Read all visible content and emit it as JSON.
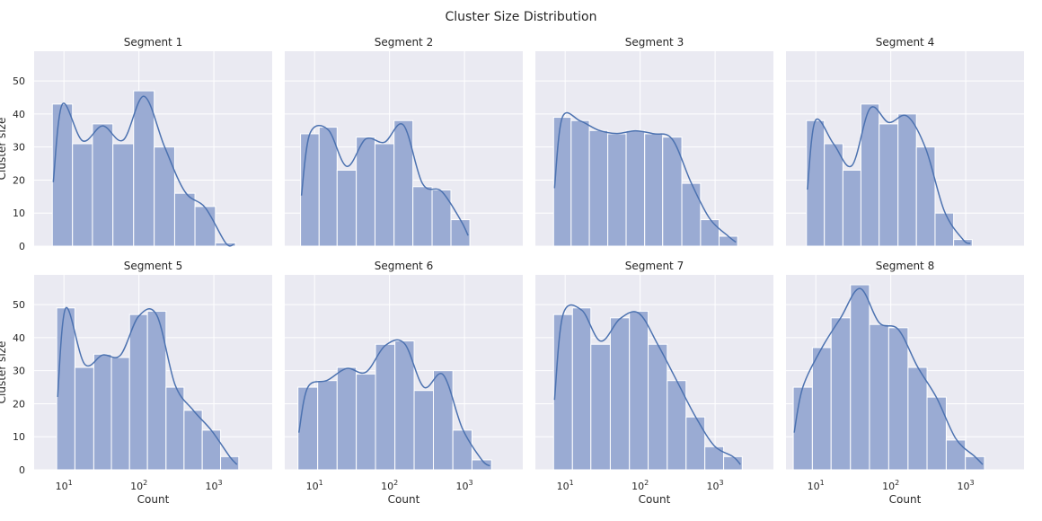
{
  "suptitle": "Cluster Size Distribution",
  "chart_data": {
    "type": "bar",
    "subtype": "histogram-with-kde",
    "x_scale": "log",
    "xlim": [
      4,
      6000
    ],
    "ylim": [
      0,
      59
    ],
    "yticks": [
      0,
      10,
      20,
      30,
      40,
      50
    ],
    "xticks": [
      10,
      100,
      1000
    ],
    "xtick_labels": [
      [
        "10",
        "1"
      ],
      [
        "10",
        "2"
      ],
      [
        "10",
        "3"
      ]
    ],
    "grid": true,
    "ylabel": "Cluster size",
    "xlabel": "Count",
    "colors": {
      "bar_fill": "#9aabd3",
      "bar_stroke": "#ffffff",
      "kde": "#4c72b0",
      "panel_bg": "#eaeaf2",
      "grid": "#ffffff"
    },
    "panels": [
      {
        "title": "Segment 1",
        "edges": [
          7,
          13,
          24,
          45,
          85,
          160,
          300,
          560,
          1050,
          1950,
          3600
        ],
        "counts": [
          43,
          31,
          37,
          31,
          47,
          30,
          16,
          12,
          1,
          0
        ]
      },
      {
        "title": "Segment 2",
        "edges": [
          6.5,
          11.5,
          20,
          36,
          64,
          115,
          205,
          370,
          660,
          1180,
          2100
        ],
        "counts": [
          34,
          36,
          23,
          33,
          31,
          38,
          18,
          17,
          8,
          0
        ]
      },
      {
        "title": "Segment 3",
        "edges": [
          7,
          12,
          21,
          37,
          65,
          115,
          200,
          360,
          640,
          1130,
          2000,
          3500
        ],
        "counts": [
          39,
          38,
          35,
          34,
          35,
          34,
          33,
          19,
          8,
          3,
          0
        ]
      },
      {
        "title": "Segment 4",
        "edges": [
          7.5,
          13,
          23,
          40,
          70,
          125,
          220,
          390,
          690,
          1220,
          2150,
          3800
        ],
        "counts": [
          38,
          31,
          23,
          43,
          37,
          40,
          30,
          10,
          2,
          0,
          0
        ]
      },
      {
        "title": "Segment 5",
        "edges": [
          8,
          14,
          25,
          43,
          75,
          130,
          230,
          400,
          700,
          1230,
          2150
        ],
        "counts": [
          49,
          31,
          35,
          34,
          47,
          48,
          25,
          18,
          12,
          4
        ]
      },
      {
        "title": "Segment 6",
        "edges": [
          6,
          11,
          20,
          36,
          65,
          118,
          213,
          385,
          700,
          1260,
          2300
        ],
        "counts": [
          25,
          27,
          31,
          29,
          38,
          39,
          24,
          30,
          12,
          3
        ]
      },
      {
        "title": "Segment 7",
        "edges": [
          7,
          12.5,
          22,
          40,
          72,
          128,
          230,
          410,
          730,
          1300,
          2300,
          4100
        ],
        "counts": [
          47,
          49,
          38,
          46,
          48,
          38,
          27,
          16,
          7,
          4,
          0
        ]
      },
      {
        "title": "Segment 8",
        "edges": [
          5,
          9,
          16,
          29,
          52,
          94,
          170,
          305,
          550,
          990,
          1780,
          3200
        ],
        "counts": [
          25,
          37,
          46,
          56,
          44,
          43,
          31,
          22,
          9,
          4,
          0
        ]
      }
    ]
  }
}
